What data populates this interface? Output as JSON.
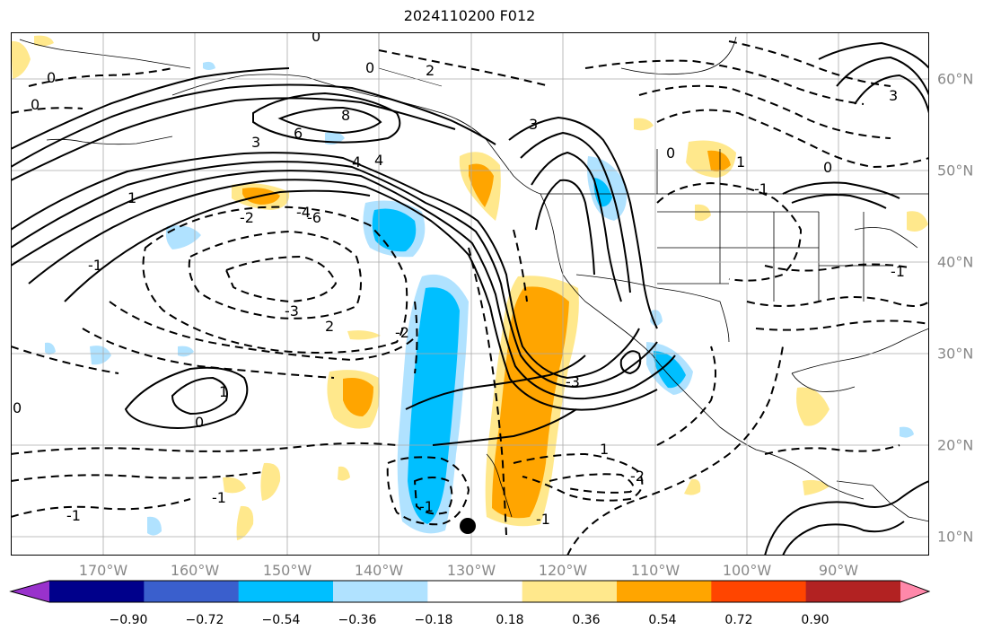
{
  "title": "2024110200 F012",
  "lon_labels": [
    "170°W",
    "160°W",
    "150°W",
    "140°W",
    "130°W",
    "120°W",
    "110°W",
    "100°W",
    "90°W"
  ],
  "lat_labels": [
    "60°N",
    "50°N",
    "40°N",
    "30°N",
    "20°N",
    "10°N"
  ],
  "colorbar": {
    "ticks": [
      "−0.90",
      "−0.72",
      "−0.54",
      "−0.36",
      "−0.18",
      "0.18",
      "0.36",
      "0.54",
      "0.72",
      "0.90"
    ],
    "colors": [
      "#9932CC",
      "#00008B",
      "#3A5FCD",
      "#00BFFF",
      "#B0E2FF",
      "#FFFFFF",
      "#FFE88C",
      "#FFA500",
      "#FF4500",
      "#B22222",
      "#FF88AA"
    ]
  },
  "contour_labels": [
    "0",
    "0",
    "0",
    "0",
    "2",
    "2",
    "-2",
    "-3",
    "-2",
    "4",
    "6",
    "8",
    "3",
    "4",
    "-4",
    "-6",
    "3",
    "0",
    "1",
    "0",
    "-1",
    "-1",
    "-1",
    "-2",
    "-3",
    "-1",
    "3",
    "0",
    "-1",
    "1",
    "-1",
    "1",
    "0",
    "1",
    "-1"
  ],
  "styles": {
    "solid_color": "#000000",
    "grid_color": "#aaaaaa"
  }
}
